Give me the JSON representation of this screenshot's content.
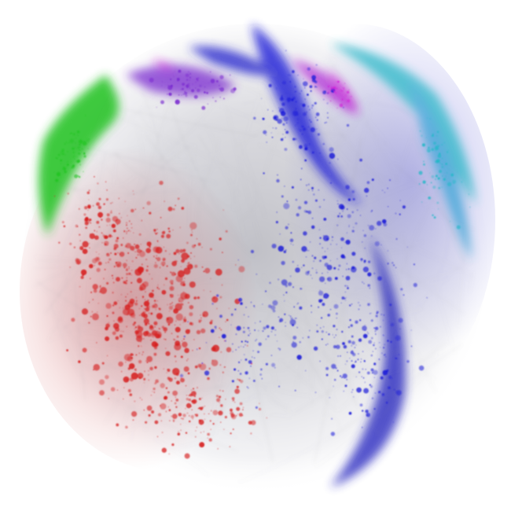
{
  "image": {
    "subject": "network-graph-sphere",
    "background_color": "#ffffff",
    "clusters": [
      {
        "name": "red-cluster",
        "color": "#d61e1e"
      },
      {
        "name": "blue-cluster",
        "color": "#1a1ad8"
      },
      {
        "name": "purple-cluster",
        "color": "#7a2ad0"
      },
      {
        "name": "green-cluster",
        "color": "#22c422"
      },
      {
        "name": "cyan-cluster",
        "color": "#22b8c8"
      },
      {
        "name": "magenta-cluster",
        "color": "#d020d8"
      },
      {
        "name": "gray-edges",
        "color": "#8a8a95"
      }
    ]
  }
}
